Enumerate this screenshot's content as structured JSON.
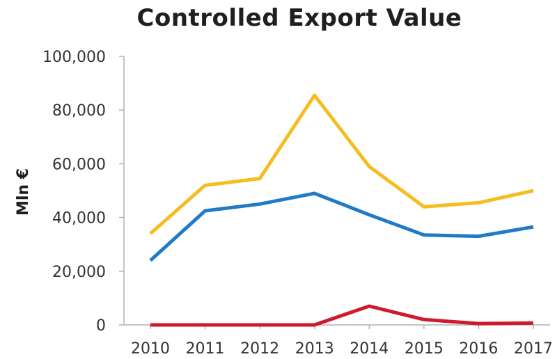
{
  "chart_data": {
    "type": "line",
    "title": "Controlled Export Value",
    "xlabel": "",
    "ylabel": "Mln €",
    "x": [
      "2010",
      "2011",
      "2012",
      "2013",
      "2014",
      "2015",
      "2016",
      "2017"
    ],
    "ylim": [
      0,
      100000
    ],
    "yticks": [
      0,
      20000,
      40000,
      60000,
      80000,
      100000
    ],
    "ytick_labels": [
      "0",
      "20,000",
      "40,000",
      "60,000",
      "80,000",
      "100,000"
    ],
    "grid": false,
    "legend": "none",
    "series": [
      {
        "color": "#F5BD1F",
        "values": [
          34000,
          52000,
          54500,
          85500,
          59000,
          44000,
          45500,
          50000
        ]
      },
      {
        "color": "#1F7BC8",
        "values": [
          24000,
          42500,
          45000,
          49000,
          41000,
          33500,
          33000,
          36500
        ]
      },
      {
        "color": "#D0192E",
        "values": [
          0,
          0,
          0,
          0,
          7000,
          2000,
          500,
          700
        ]
      }
    ]
  }
}
